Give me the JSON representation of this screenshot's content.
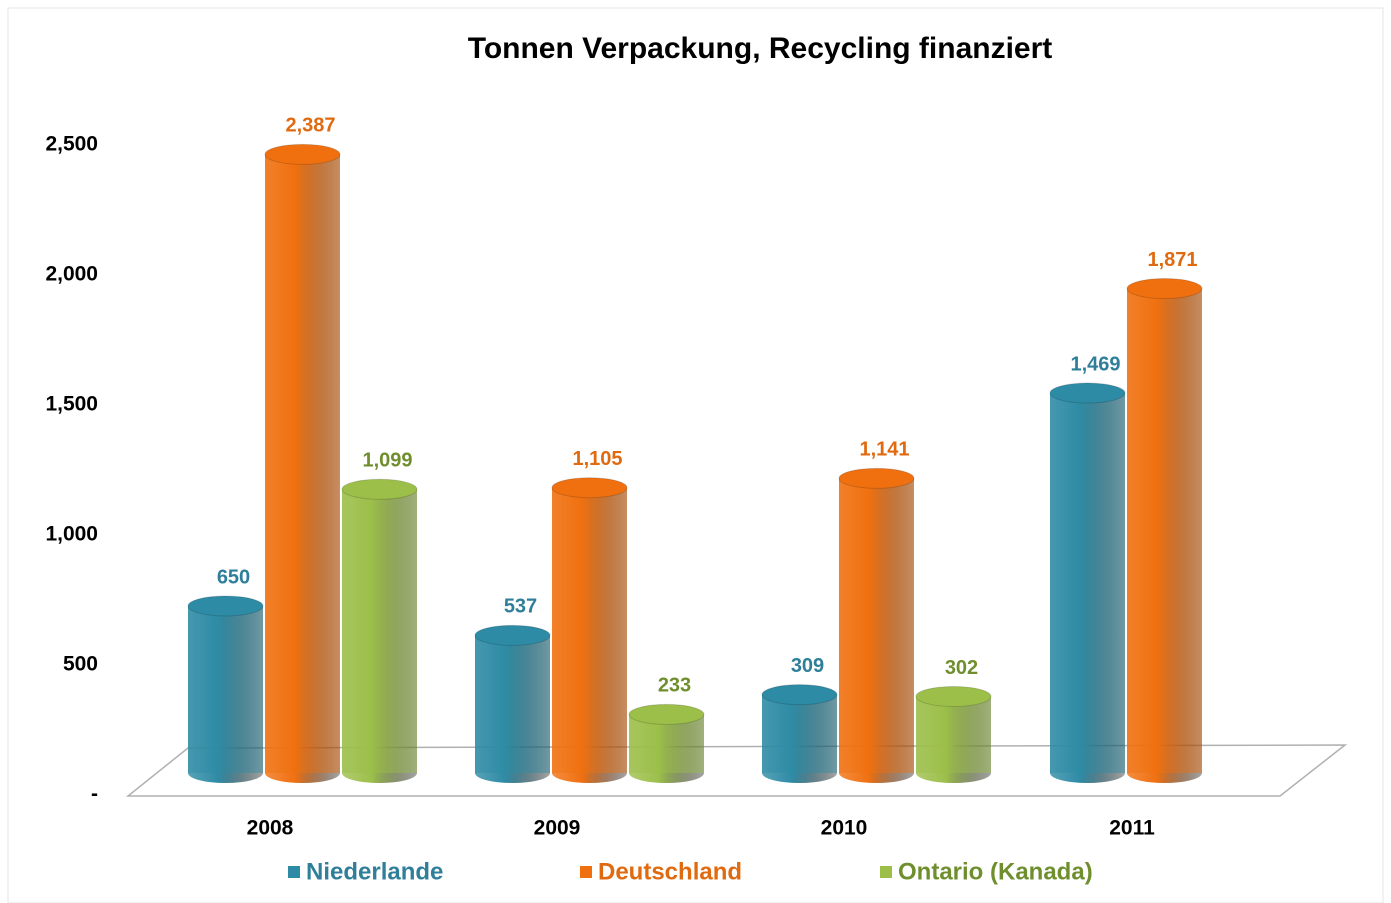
{
  "chart_data": {
    "type": "bar",
    "title": "Tonnen Verpackung, Recycling finanziert",
    "categories": [
      "2008",
      "2009",
      "2010",
      "2011"
    ],
    "series": [
      {
        "name": "Niederlande",
        "color": "#2e8ba5",
        "values": [
          650,
          537,
          309,
          1469
        ],
        "value_labels": [
          "650",
          "537",
          "309",
          "1,469"
        ]
      },
      {
        "name": "Deutschland",
        "color": "#f07010",
        "values": [
          2387,
          1105,
          1141,
          1871
        ],
        "value_labels": [
          "2,387",
          "1,105",
          "1,141",
          "1,871"
        ]
      },
      {
        "name": "Ontario (Kanada)",
        "color": "#9cbf4a",
        "values": [
          1099,
          233,
          302,
          null
        ],
        "value_labels": [
          "1,099",
          "233",
          "302",
          null
        ]
      }
    ],
    "ylim": [
      0,
      2500
    ],
    "yticks": [
      {
        "value": 0,
        "label": "-"
      },
      500,
      {
        "value": 1000,
        "label": "1,000"
      },
      {
        "value": 1500,
        "label": "1,500"
      },
      {
        "value": 2000,
        "label": "2,000"
      },
      {
        "value": 2500,
        "label": "2,500"
      }
    ],
    "legend": "bottom"
  }
}
